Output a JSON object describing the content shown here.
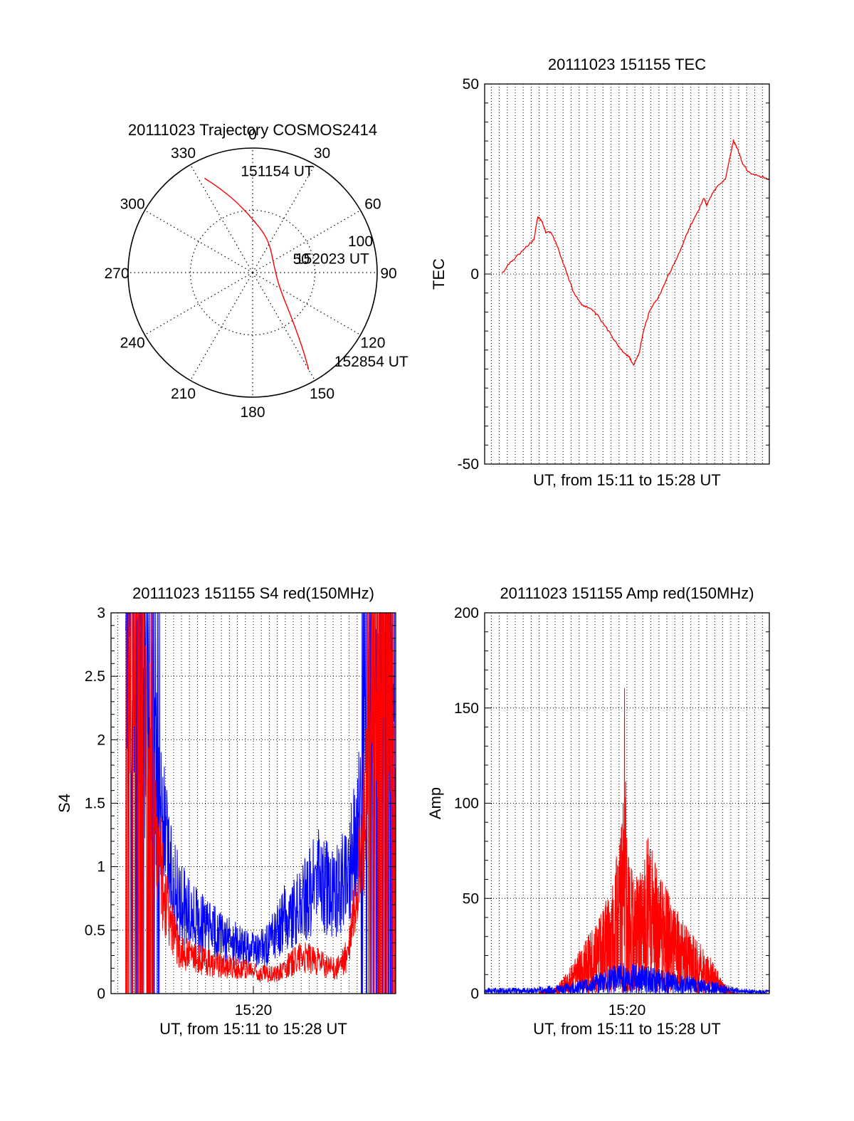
{
  "colors": {
    "red": "#ff0000",
    "blue": "#0000ff",
    "axis": "#000000",
    "grid": "#000000"
  },
  "chart_data": [
    {
      "id": "trajectory",
      "type": "polar",
      "title": "20111023 Trajectory COSMOS2414",
      "angle_labels": [
        "0",
        "30",
        "60",
        "90",
        "120",
        "150",
        "180",
        "210",
        "240",
        "270",
        "300",
        "330"
      ],
      "radial_labels": [
        "50",
        "100"
      ],
      "rlim": [
        0,
        100
      ],
      "grid": true,
      "series": [
        {
          "color": "red",
          "points": [
            {
              "az": 333,
              "r": 85
            },
            {
              "az": 338,
              "r": 74
            },
            {
              "az": 346,
              "r": 60
            },
            {
              "az": 358,
              "r": 45
            },
            {
              "az": 25,
              "r": 30
            },
            {
              "az": 75,
              "r": 18
            },
            {
              "az": 118,
              "r": 24
            },
            {
              "az": 140,
              "r": 50
            },
            {
              "az": 147,
              "r": 75
            },
            {
              "az": 150,
              "r": 90
            }
          ]
        }
      ],
      "annotations": [
        {
          "text": "151154 UT",
          "az": 353,
          "r": 78
        },
        {
          "text": "152023 UT",
          "az": 78,
          "r": 35
        },
        {
          "text": "152854 UT",
          "az": 139,
          "r": 100
        }
      ]
    },
    {
      "id": "tec",
      "type": "line",
      "title": "20111023 151155 TEC",
      "xlabel": "UT, from 15:11 to 15:28 UT",
      "ylabel": "TEC",
      "xlim": [
        "15:11:05",
        "15:28:55"
      ],
      "ylim": [
        -50,
        50
      ],
      "yticks": [
        "-50",
        "0",
        "50"
      ],
      "xticks": [],
      "grid": true,
      "series": [
        {
          "color": "red",
          "points": [
            [
              "15:12:10",
              0
            ],
            [
              "15:12:40",
              3
            ],
            [
              "15:13:10",
              5
            ],
            [
              "15:13:40",
              7
            ],
            [
              "15:14:10",
              9
            ],
            [
              "15:14:25",
              15
            ],
            [
              "15:14:40",
              14
            ],
            [
              "15:14:55",
              11
            ],
            [
              "15:15:15",
              11
            ],
            [
              "15:15:40",
              7
            ],
            [
              "15:16:10",
              1
            ],
            [
              "15:16:40",
              -5
            ],
            [
              "15:17:10",
              -8
            ],
            [
              "15:17:40",
              -9
            ],
            [
              "15:18:10",
              -11
            ],
            [
              "15:18:40",
              -14
            ],
            [
              "15:19:10",
              -17
            ],
            [
              "15:19:40",
              -20
            ],
            [
              "15:20:10",
              -22
            ],
            [
              "15:20:25",
              -24
            ],
            [
              "15:20:45",
              -21
            ],
            [
              "15:21:05",
              -14
            ],
            [
              "15:21:30",
              -9
            ],
            [
              "15:22:00",
              -6
            ],
            [
              "15:22:30",
              -1
            ],
            [
              "15:23:00",
              3
            ],
            [
              "15:23:30",
              8
            ],
            [
              "15:24:00",
              13
            ],
            [
              "15:24:30",
              17
            ],
            [
              "15:24:50",
              20
            ],
            [
              "15:25:00",
              18
            ],
            [
              "15:25:20",
              21
            ],
            [
              "15:25:40",
              23
            ],
            [
              "15:26:10",
              25
            ],
            [
              "15:26:25",
              30
            ],
            [
              "15:26:40",
              35
            ],
            [
              "15:26:55",
              33
            ],
            [
              "15:27:15",
              29
            ],
            [
              "15:27:35",
              27
            ],
            [
              "15:28:05",
              26
            ],
            [
              "15:28:55",
              25
            ]
          ]
        }
      ]
    },
    {
      "id": "s4",
      "type": "line",
      "title": "20111023 151155 S4 red(150MHz)",
      "xlabel": "UT, from 15:11 to 15:28 UT",
      "ylabel": "S4",
      "xlim": [
        "15:11:05",
        "15:28:55"
      ],
      "ylim": [
        0,
        3
      ],
      "yticks": [
        "0",
        "0.5",
        "1",
        "1.5",
        "2",
        "2.5",
        "3"
      ],
      "xticks": [
        "15:20"
      ],
      "grid": true,
      "series": [
        {
          "color": "blue",
          "points": [
            [
              "15:12:00",
              3.0
            ],
            [
              "15:12:30",
              2.6
            ],
            [
              "15:13:00",
              3.0
            ],
            [
              "15:13:30",
              2.2
            ],
            [
              "15:14:00",
              1.6
            ],
            [
              "15:14:30",
              1.2
            ],
            [
              "15:15:00",
              0.85
            ],
            [
              "15:15:30",
              0.72
            ],
            [
              "15:16:00",
              0.62
            ],
            [
              "15:16:30",
              0.57
            ],
            [
              "15:17:00",
              0.52
            ],
            [
              "15:17:30",
              0.48
            ],
            [
              "15:18:00",
              0.45
            ],
            [
              "15:18:30",
              0.42
            ],
            [
              "15:19:00",
              0.38
            ],
            [
              "15:19:30",
              0.36
            ],
            [
              "15:20:00",
              0.34
            ],
            [
              "15:20:30",
              0.35
            ],
            [
              "15:21:00",
              0.4
            ],
            [
              "15:21:30",
              0.5
            ],
            [
              "15:22:00",
              0.6
            ],
            [
              "15:22:30",
              0.62
            ],
            [
              "15:23:00",
              0.7
            ],
            [
              "15:23:30",
              0.8
            ],
            [
              "15:24:00",
              0.9
            ],
            [
              "15:24:30",
              0.85
            ],
            [
              "15:25:00",
              0.78
            ],
            [
              "15:25:30",
              0.85
            ],
            [
              "15:26:00",
              1.0
            ],
            [
              "15:26:30",
              1.2
            ],
            [
              "15:27:00",
              1.8
            ],
            [
              "15:27:30",
              2.5
            ],
            [
              "15:28:00",
              3.0
            ],
            [
              "15:28:30",
              2.2
            ],
            [
              "15:28:55",
              1.5
            ]
          ]
        },
        {
          "color": "red",
          "points": [
            [
              "15:12:00",
              2.8
            ],
            [
              "15:12:30",
              3.0
            ],
            [
              "15:13:00",
              2.4
            ],
            [
              "15:13:30",
              1.9
            ],
            [
              "15:14:00",
              1.1
            ],
            [
              "15:14:30",
              0.75
            ],
            [
              "15:15:00",
              0.45
            ],
            [
              "15:15:30",
              0.32
            ],
            [
              "15:16:00",
              0.3
            ],
            [
              "15:16:30",
              0.27
            ],
            [
              "15:17:00",
              0.25
            ],
            [
              "15:17:30",
              0.24
            ],
            [
              "15:18:00",
              0.22
            ],
            [
              "15:18:30",
              0.21
            ],
            [
              "15:19:00",
              0.2
            ],
            [
              "15:19:30",
              0.19
            ],
            [
              "15:20:00",
              0.17
            ],
            [
              "15:20:30",
              0.16
            ],
            [
              "15:21:00",
              0.15
            ],
            [
              "15:21:30",
              0.16
            ],
            [
              "15:22:00",
              0.2
            ],
            [
              "15:22:30",
              0.25
            ],
            [
              "15:23:00",
              0.3
            ],
            [
              "15:23:30",
              0.28
            ],
            [
              "15:24:00",
              0.25
            ],
            [
              "15:24:30",
              0.22
            ],
            [
              "15:25:00",
              0.2
            ],
            [
              "15:25:30",
              0.22
            ],
            [
              "15:26:00",
              0.35
            ],
            [
              "15:26:30",
              0.9
            ],
            [
              "15:27:00",
              1.4
            ],
            [
              "15:27:30",
              2.2
            ],
            [
              "15:28:00",
              3.0
            ],
            [
              "15:28:30",
              3.0
            ],
            [
              "15:28:55",
              1.3
            ]
          ]
        }
      ]
    },
    {
      "id": "amp",
      "type": "line",
      "title": "20111023 151155 Amp red(150MHz)",
      "xlabel": "UT, from 15:11 to 15:28 UT",
      "ylabel": "Amp",
      "xlim": [
        "15:11:05",
        "15:28:55"
      ],
      "ylim": [
        0,
        200
      ],
      "yticks": [
        "0",
        "50",
        "100",
        "150",
        "200"
      ],
      "xticks": [
        "15:20"
      ],
      "grid": true,
      "series": [
        {
          "color": "red",
          "points": [
            [
              "15:14:30",
              1
            ],
            [
              "15:15:00",
              2
            ],
            [
              "15:15:30",
              3
            ],
            [
              "15:16:00",
              8
            ],
            [
              "15:16:30",
              15
            ],
            [
              "15:17:00",
              22
            ],
            [
              "15:17:30",
              30
            ],
            [
              "15:18:00",
              36
            ],
            [
              "15:18:30",
              45
            ],
            [
              "15:19:00",
              58
            ],
            [
              "15:19:20",
              72
            ],
            [
              "15:19:40",
              90
            ],
            [
              "15:19:50",
              170
            ],
            [
              "15:20:00",
              75
            ],
            [
              "15:20:30",
              60
            ],
            [
              "15:21:00",
              70
            ],
            [
              "15:21:20",
              85
            ],
            [
              "15:21:40",
              72
            ],
            [
              "15:22:00",
              62
            ],
            [
              "15:22:30",
              55
            ],
            [
              "15:23:00",
              46
            ],
            [
              "15:23:30",
              38
            ],
            [
              "15:24:00",
              32
            ],
            [
              "15:24:30",
              27
            ],
            [
              "15:25:00",
              22
            ],
            [
              "15:25:30",
              15
            ],
            [
              "15:26:00",
              6
            ],
            [
              "15:26:30",
              1
            ],
            [
              "15:27:00",
              0
            ]
          ]
        },
        {
          "color": "blue",
          "points": [
            [
              "15:11:05",
              3
            ],
            [
              "15:12:00",
              3
            ],
            [
              "15:13:00",
              3
            ],
            [
              "15:14:00",
              3
            ],
            [
              "15:15:00",
              4
            ],
            [
              "15:16:00",
              5
            ],
            [
              "15:17:00",
              7
            ],
            [
              "15:18:00",
              10
            ],
            [
              "15:19:00",
              14
            ],
            [
              "15:19:30",
              16
            ],
            [
              "15:20:00",
              16
            ],
            [
              "15:21:00",
              15
            ],
            [
              "15:22:00",
              13
            ],
            [
              "15:23:00",
              11
            ],
            [
              "15:24:00",
              9
            ],
            [
              "15:25:00",
              7
            ],
            [
              "15:26:00",
              5
            ],
            [
              "15:27:00",
              3
            ],
            [
              "15:28:00",
              2
            ],
            [
              "15:28:55",
              2
            ]
          ]
        }
      ]
    }
  ]
}
